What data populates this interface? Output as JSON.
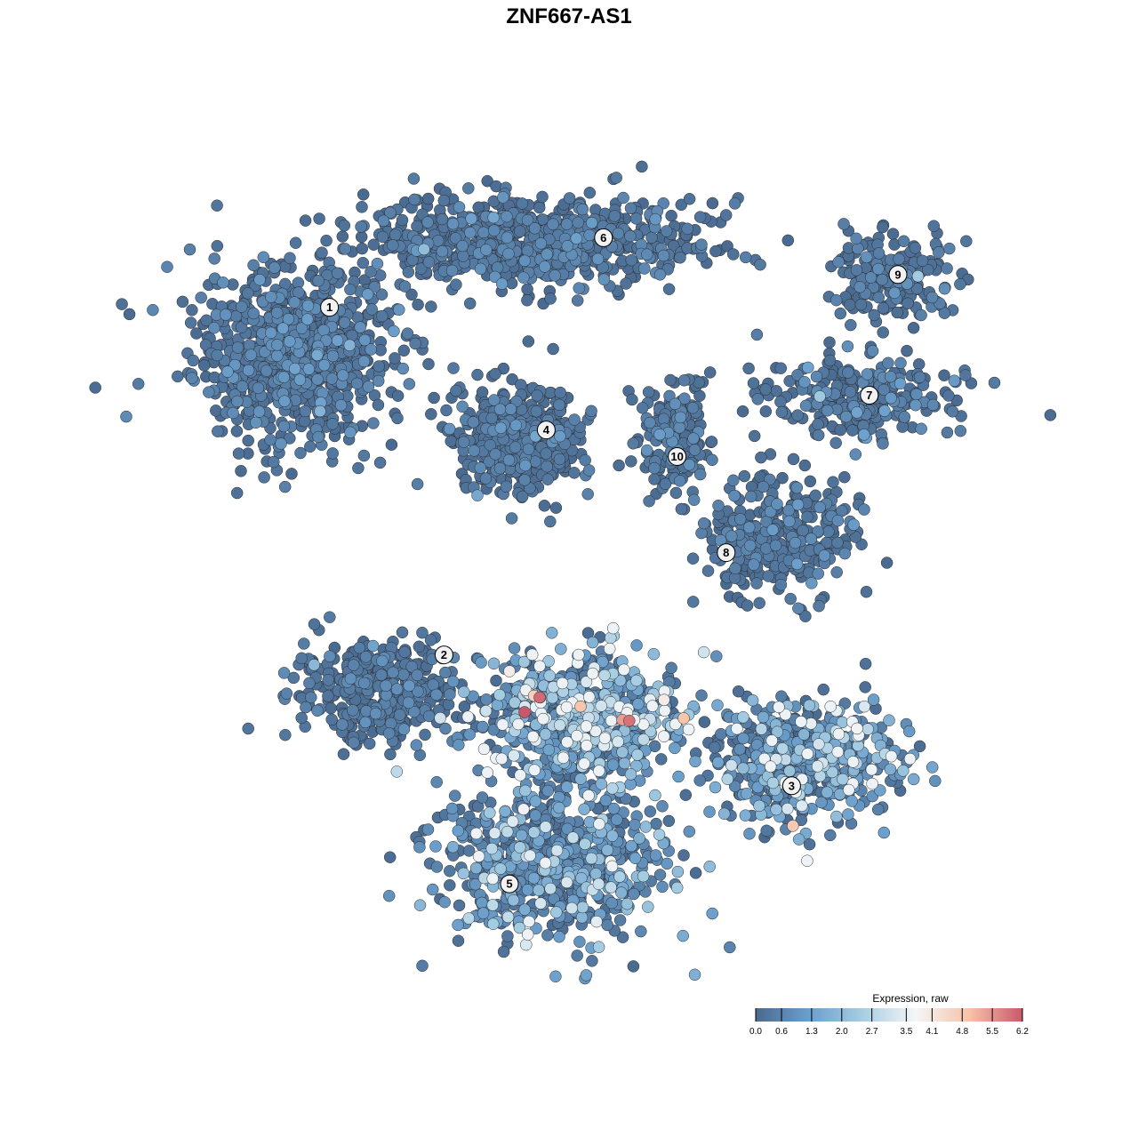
{
  "chart_data": {
    "type": "scatter",
    "title": "ZNF667-AS1",
    "xlabel": "",
    "ylabel": "",
    "axes_visible": false,
    "grid": false,
    "xlim": [
      -10,
      10.5
    ],
    "ylim": [
      -10.5,
      10
    ],
    "color_by": "Expression, raw",
    "colorscale": {
      "title": "Expression, raw",
      "range": [
        0.0,
        6.2
      ],
      "ticks": [
        "0.0",
        "0.6",
        "1.3",
        "2.0",
        "2.7",
        "3.5",
        "4.1",
        "4.8",
        "5.5",
        "6.2"
      ],
      "colors": [
        "#4a6a90",
        "#6b9fcb",
        "#a6cde2",
        "#f4f6f8",
        "#f6c3a8",
        "#c9596a"
      ],
      "placement": "bottom-right"
    },
    "point_edge_color": "#2b2b2b",
    "clusters": [
      {
        "label": "1",
        "label_pos": [
          -6.4,
          6.4
        ],
        "center": [
          -7.3,
          5.3
        ],
        "spread": [
          2.0,
          1.7
        ],
        "n": 900,
        "mean_expr": 0.35
      },
      {
        "label": "6",
        "label_pos": [
          0.3,
          8.1
        ],
        "center": [
          -1.4,
          8.0
        ],
        "spread": [
          3.3,
          0.9
        ],
        "n": 800,
        "mean_expr": 0.3
      },
      {
        "label": "4",
        "label_pos": [
          -1.1,
          3.4
        ],
        "center": [
          -1.8,
          3.2
        ],
        "spread": [
          1.2,
          1.1
        ],
        "n": 500,
        "mean_expr": 0.25
      },
      {
        "label": "9",
        "label_pos": [
          7.5,
          7.2
        ],
        "center": [
          7.4,
          7.1
        ],
        "spread": [
          1.3,
          0.8
        ],
        "n": 200,
        "mean_expr": 0.3
      },
      {
        "label": "7",
        "label_pos": [
          6.8,
          4.25
        ],
        "center": [
          6.6,
          4.2
        ],
        "spread": [
          1.8,
          0.8
        ],
        "n": 260,
        "mean_expr": 0.35
      },
      {
        "label": "10",
        "label_pos": [
          2.1,
          2.75
        ],
        "center": [
          2.0,
          3.2
        ],
        "spread": [
          0.8,
          1.2
        ],
        "n": 170,
        "mean_expr": 0.3
      },
      {
        "label": "8",
        "label_pos": [
          3.3,
          0.4
        ],
        "center": [
          4.6,
          0.8
        ],
        "spread": [
          1.5,
          1.3
        ],
        "n": 320,
        "mean_expr": 0.3
      },
      {
        "label": "2",
        "label_pos": [
          -3.6,
          -2.1
        ],
        "center": [
          -5.2,
          -3.0
        ],
        "spread": [
          1.6,
          1.0
        ],
        "n": 380,
        "mean_expr": 0.3
      },
      {
        "label": "3",
        "label_pos": [
          4.9,
          -5.3
        ],
        "center": [
          5.2,
          -4.7
        ],
        "spread": [
          1.8,
          1.2
        ],
        "n": 520,
        "mean_expr": 1.3
      },
      {
        "label": "5",
        "label_pos": [
          -2.0,
          -7.7
        ],
        "center": [
          -1.0,
          -7.2
        ],
        "spread": [
          2.3,
          1.5
        ],
        "n": 700,
        "mean_expr": 1.0
      },
      {
        "label": "",
        "center": [
          -0.2,
          -3.6
        ],
        "spread": [
          2.0,
          1.3
        ],
        "n": 650,
        "mean_expr": 1.6
      }
    ],
    "high_points": [
      {
        "x": -1.26,
        "y": -3.14,
        "expr": 6.0
      },
      {
        "x": -1.63,
        "y": -3.5,
        "expr": 6.2
      },
      {
        "x": 0.93,
        "y": -3.71,
        "expr": 5.9
      },
      {
        "x": 0.76,
        "y": -3.69,
        "expr": 5.4
      },
      {
        "x": 2.26,
        "y": -3.65,
        "expr": 4.9
      },
      {
        "x": -0.26,
        "y": -3.36,
        "expr": 4.9
      },
      {
        "x": 4.93,
        "y": -6.28,
        "expr": 4.8
      },
      {
        "x": -1.4,
        "y": -3.1,
        "expr": 4.6
      },
      {
        "x": 1.78,
        "y": -3.2,
        "expr": 4.0
      },
      {
        "x": -2.0,
        "y": -2.5,
        "expr": 4.0
      },
      {
        "x": 6.5,
        "y": -3.9,
        "expr": 3.8
      }
    ]
  }
}
